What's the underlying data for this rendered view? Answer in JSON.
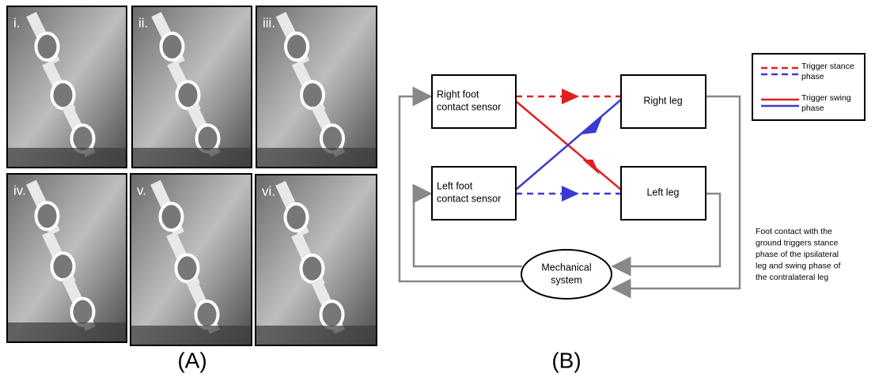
{
  "panel_a": {
    "label": "(A)",
    "photos": [
      "i.",
      "ii.",
      "iii.",
      "iv.",
      "v.",
      "vi."
    ]
  },
  "panel_b": {
    "label": "(B)",
    "nodes": [
      {
        "lines": [
          "Right foot",
          "contact sensor"
        ]
      },
      {
        "lines": [
          "Right leg"
        ]
      },
      {
        "lines": [
          "Left foot",
          "contact sensor"
        ]
      },
      {
        "lines": [
          "Left leg"
        ]
      },
      {
        "lines": [
          "Mechanical",
          "system"
        ]
      }
    ],
    "legend": [
      {
        "lines": [
          "Trigger stance",
          "phase"
        ]
      },
      {
        "lines": [
          "Trigger swing",
          "phase"
        ]
      }
    ],
    "note": [
      "Foot contact with the",
      "ground triggers stance",
      "phase of the ipsilateral",
      "leg and swing phase of",
      "the contralateral leg"
    ]
  }
}
